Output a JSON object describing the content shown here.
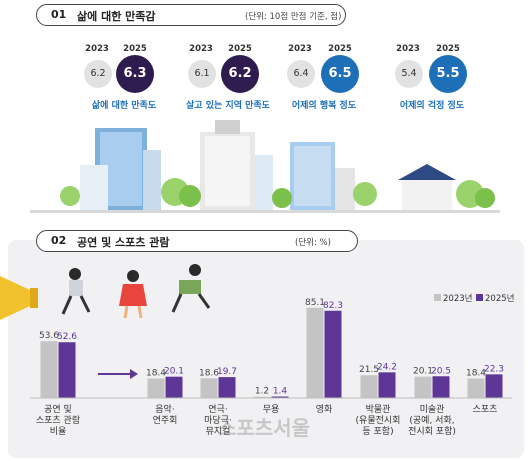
{
  "section1": {
    "number": "01",
    "title": "삶에 대한 만족감",
    "unit": "(단위: 10점 만점 기준, 점)",
    "items": [
      {
        "label": "삶에 대한 만족도",
        "year_old": "2023",
        "year_new": "2025",
        "value_old": "6.2",
        "value_new": "6.3",
        "color": "#2e1c4f"
      },
      {
        "label": "살고 있는 지역 만족도",
        "year_old": "2023",
        "year_new": "2025",
        "value_old": "6.1",
        "value_new": "6.2",
        "color": "#2e1c4f"
      },
      {
        "label": "어제의 행복 정도",
        "year_old": "2023",
        "year_new": "2025",
        "value_old": "6.4",
        "value_new": "6.5",
        "color": "#1d6fb8"
      },
      {
        "label": "어제의 걱정 정도",
        "year_old": "2023",
        "year_new": "2025",
        "value_old": "5.4",
        "value_new": "5.5",
        "color": "#1d6fb8"
      }
    ]
  },
  "section2": {
    "number": "02",
    "title": "공연 및 스포츠 관람",
    "unit": "(단위: %)"
  },
  "watermark": "스포츠서울",
  "colors": {
    "old": "#c4c4c4",
    "new": "#5e3696",
    "accent_blue": "#1d6fb8",
    "accent_navy": "#2e1c4f"
  },
  "chart_data": {
    "type": "bar",
    "categories": [
      "공연 및\n스포츠 관람\n비율",
      "음악·\n연주회",
      "연극·\n마당극·\n뮤지컬",
      "무용",
      "영화",
      "박물관\n(유물전시회\n등 포함)",
      "미술관\n(공예, 서화,\n전시회 포함)",
      "스포츠"
    ],
    "series": [
      {
        "name": "2023년",
        "values": [
          53.6,
          18.4,
          18.6,
          1.2,
          85.1,
          21.5,
          20.1,
          18.4
        ]
      },
      {
        "name": "2025년",
        "values": [
          52.6,
          20.1,
          19.7,
          1.4,
          82.3,
          24.2,
          20.5,
          22.3
        ]
      }
    ],
    "legend_position": "top-right",
    "grid": false
  }
}
